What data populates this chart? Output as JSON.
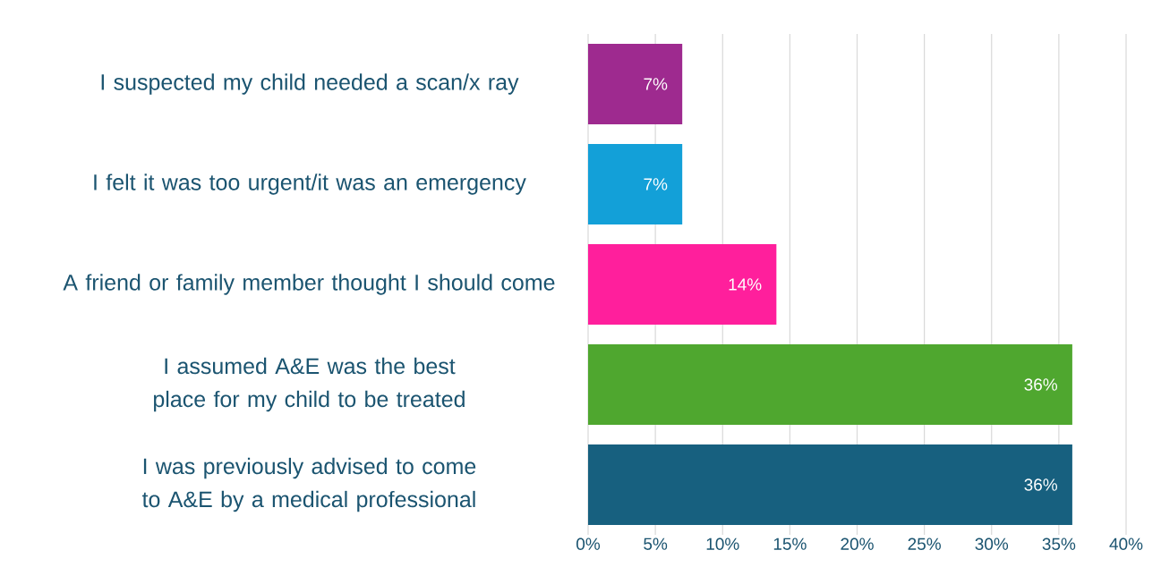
{
  "chart_data": {
    "type": "bar",
    "orientation": "horizontal",
    "categories": [
      "I suspected my child needed a scan/x ray",
      "I felt it was too urgent/it was an emergency",
      "A friend or family member thought I should come",
      "I assumed A&E was the best place for my child to be treated",
      "I was previously advised to come to A&E by a medical professional"
    ],
    "values": [
      7,
      7,
      14,
      36,
      36
    ],
    "colors": [
      "#9e2a8f",
      "#13a0d8",
      "#ff1f9c",
      "#4fa72f",
      "#17607f"
    ],
    "value_labels": [
      "7%",
      "7%",
      "14%",
      "36%",
      "36%"
    ],
    "xlim": [
      0,
      40
    ],
    "xticks": [
      {
        "value": 0,
        "label": "0%"
      },
      {
        "value": 5,
        "label": "5%"
      },
      {
        "value": 10,
        "label": "10%"
      },
      {
        "value": 15,
        "label": "15%"
      },
      {
        "value": 20,
        "label": "20%"
      },
      {
        "value": 25,
        "label": "25%"
      },
      {
        "value": 30,
        "label": "30%"
      },
      {
        "value": 35,
        "label": "35%"
      },
      {
        "value": 40,
        "label": "40%"
      }
    ],
    "grid": "x"
  }
}
